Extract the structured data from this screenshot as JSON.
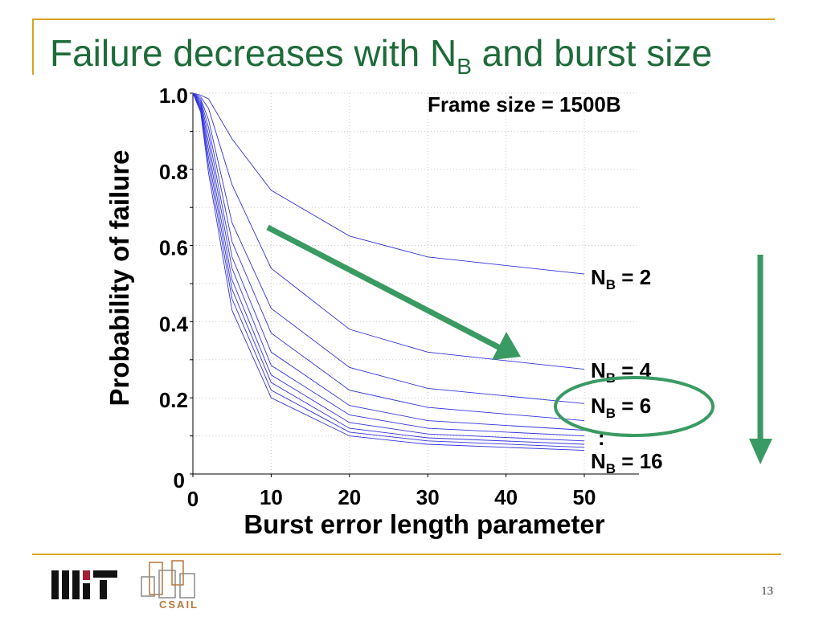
{
  "slide": {
    "title_main": "Failure decreases with N",
    "title_sub": "B",
    "title_tail": " and burst size",
    "page_number": "13",
    "logos": {
      "mit": "MIT",
      "csail": "CSAIL"
    }
  },
  "colors": {
    "title": "#1e6b3a",
    "accent_gold": "#d9a420",
    "series_line": "#3333dd",
    "arrow_green": "#3a9a63"
  },
  "annotations": {
    "frame_size": "Frame size = 1500B",
    "labels": [
      {
        "prefix": "N",
        "sub": "B",
        "suffix": " = 2",
        "series": "N_B = 2"
      },
      {
        "prefix": "N",
        "sub": "B",
        "suffix": " = 4",
        "series": "N_B = 4"
      },
      {
        "prefix": "N",
        "sub": "B",
        "suffix": " = 6",
        "series": "N_B = 6"
      },
      {
        "prefix": "N",
        "sub": "B",
        "suffix": " = 16",
        "series": "N_B = 16"
      }
    ],
    "ellipsis": ":",
    "icons": [
      "diagonal-arrow-icon",
      "down-arrow-icon",
      "highlight-ellipse"
    ]
  },
  "chart_data": {
    "type": "line",
    "title": "",
    "xlabel": "Burst error length parameter",
    "ylabel": "Probability of failure",
    "xlim": [
      0,
      50
    ],
    "ylim": [
      0,
      1.0
    ],
    "x_ticks": [
      0,
      10,
      20,
      30,
      40,
      50
    ],
    "x_tick_labels": [
      "0",
      "10",
      "20",
      "30",
      "40",
      "50"
    ],
    "y_ticks": [
      0,
      0.2,
      0.4,
      0.6,
      0.8,
      1.0
    ],
    "y_tick_labels": [
      "0",
      "0.2",
      "0.4",
      "0.6",
      "0.8",
      "1.0"
    ],
    "grid": true,
    "x": [
      0,
      1,
      2,
      5,
      10,
      20,
      30,
      50
    ],
    "series": [
      {
        "name": "N_B = 2",
        "values": [
          1.0,
          0.995,
          0.985,
          0.88,
          0.745,
          0.625,
          0.57,
          0.525
        ]
      },
      {
        "name": "N_B = 4",
        "values": [
          1.0,
          0.99,
          0.96,
          0.76,
          0.54,
          0.38,
          0.32,
          0.275
        ]
      },
      {
        "name": "N_B = 6",
        "values": [
          1.0,
          0.985,
          0.93,
          0.66,
          0.435,
          0.28,
          0.225,
          0.185
        ]
      },
      {
        "values": [
          1.0,
          0.98,
          0.91,
          0.61,
          0.37,
          0.22,
          0.175,
          0.14
        ]
      },
      {
        "values": [
          1.0,
          0.975,
          0.89,
          0.57,
          0.32,
          0.18,
          0.14,
          0.115
        ]
      },
      {
        "values": [
          1.0,
          0.97,
          0.87,
          0.54,
          0.285,
          0.155,
          0.12,
          0.1
        ]
      },
      {
        "values": [
          1.0,
          0.965,
          0.85,
          0.51,
          0.26,
          0.135,
          0.105,
          0.087
        ]
      },
      {
        "values": [
          1.0,
          0.96,
          0.83,
          0.485,
          0.24,
          0.12,
          0.095,
          0.078
        ]
      },
      {
        "values": [
          1.0,
          0.955,
          0.81,
          0.46,
          0.22,
          0.11,
          0.087,
          0.07
        ]
      },
      {
        "name": "N_B = 16",
        "values": [
          1.0,
          0.95,
          0.79,
          0.43,
          0.2,
          0.1,
          0.078,
          0.062
        ]
      }
    ]
  }
}
